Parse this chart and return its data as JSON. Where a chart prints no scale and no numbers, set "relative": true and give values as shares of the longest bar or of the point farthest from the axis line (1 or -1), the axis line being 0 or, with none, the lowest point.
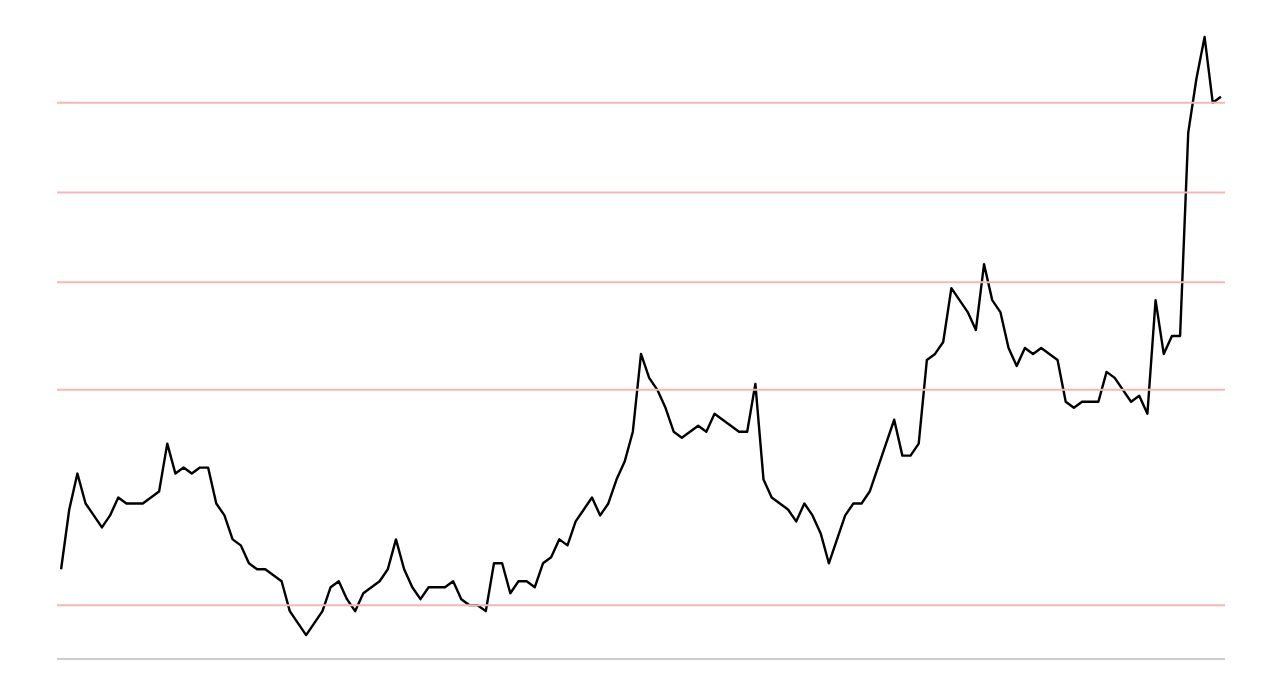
{
  "chart_data": {
    "type": "line",
    "relative": true,
    "categories": [
      null,
      null,
      null,
      null,
      null,
      null,
      null,
      null,
      null,
      null,
      null,
      null,
      null,
      null,
      null,
      null,
      null,
      null,
      null,
      null,
      null,
      null,
      null,
      null,
      null,
      null,
      null,
      null,
      null,
      null,
      null,
      null,
      null,
      null,
      null,
      null,
      null,
      null,
      null,
      null,
      null,
      null,
      null,
      null,
      null,
      null,
      null,
      null,
      null,
      null,
      null,
      null,
      null,
      null,
      null,
      null,
      null,
      null,
      null,
      null,
      null,
      null,
      null,
      null,
      null,
      null,
      null,
      null,
      null,
      null,
      null,
      null,
      null,
      null,
      null,
      null,
      null,
      null,
      null,
      null,
      null,
      null,
      null,
      null,
      null,
      null,
      null,
      null,
      null,
      null,
      null,
      null,
      null,
      null,
      null,
      null,
      null,
      null,
      null,
      null,
      null,
      null,
      null,
      null,
      null,
      null,
      null,
      null,
      null,
      null,
      null,
      null,
      null,
      null,
      null,
      null,
      null,
      null,
      null,
      null,
      null,
      null,
      null,
      null,
      null,
      null,
      null,
      null,
      null,
      null,
      null,
      null,
      null,
      null,
      null,
      null,
      null,
      null,
      null,
      null,
      null,
      null,
      null
    ],
    "series": [
      {
        "color": "#000000",
        "values": [
          0.11,
          0.21,
          0.27,
          0.22,
          0.2,
          0.18,
          0.2,
          0.23,
          0.22,
          0.22,
          0.22,
          0.23,
          0.24,
          0.32,
          0.27,
          0.28,
          0.27,
          0.28,
          0.28,
          0.22,
          0.2,
          0.16,
          0.15,
          0.12,
          0.11,
          0.11,
          0.1,
          0.09,
          0.04,
          0.02,
          0.0,
          0.02,
          0.04,
          0.08,
          0.09,
          0.06,
          0.04,
          0.07,
          0.08,
          0.09,
          0.11,
          0.16,
          0.11,
          0.08,
          0.06,
          0.08,
          0.08,
          0.08,
          0.09,
          0.06,
          0.05,
          0.05,
          0.04,
          0.12,
          0.12,
          0.07,
          0.09,
          0.09,
          0.08,
          0.12,
          0.13,
          0.16,
          0.15,
          0.19,
          0.21,
          0.23,
          0.2,
          0.22,
          0.26,
          0.29,
          0.34,
          0.47,
          0.43,
          0.41,
          0.38,
          0.34,
          0.33,
          0.34,
          0.35,
          0.34,
          0.37,
          0.36,
          0.35,
          0.34,
          0.34,
          0.42,
          0.26,
          0.23,
          0.22,
          0.21,
          0.19,
          0.22,
          0.2,
          0.17,
          0.12,
          0.16,
          0.2,
          0.22,
          0.22,
          0.24,
          0.28,
          0.32,
          0.36,
          0.3,
          0.3,
          0.32,
          0.46,
          0.47,
          0.49,
          0.58,
          0.56,
          0.54,
          0.51,
          0.62,
          0.56,
          0.54,
          0.48,
          0.45,
          0.48,
          0.47,
          0.48,
          0.47,
          0.46,
          0.39,
          0.38,
          0.39,
          0.39,
          0.39,
          0.44,
          0.43,
          0.41,
          0.39,
          0.4,
          0.37,
          0.56,
          0.47,
          0.5,
          0.5,
          0.84,
          0.93,
          1.0,
          0.89,
          0.9
        ]
      }
    ],
    "ref_lines": [
      {
        "axis": "y",
        "value": 0.89,
        "color": "#f2b8b8"
      },
      {
        "axis": "y",
        "value": 0.74,
        "color": "#f2b8b8"
      },
      {
        "axis": "y",
        "value": 0.59,
        "color": "#f2b8b8"
      },
      {
        "axis": "y",
        "value": 0.41,
        "color": "#f2b8b8"
      },
      {
        "axis": "y",
        "value": 0.05,
        "color": "#f2b8b8"
      }
    ]
  }
}
